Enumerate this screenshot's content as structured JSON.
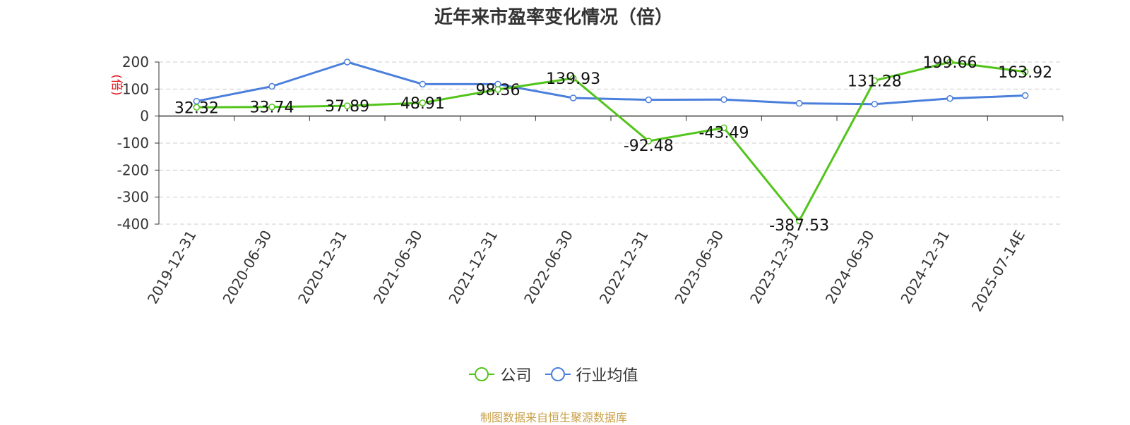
{
  "title": "近年来市盈率变化情况（倍）",
  "unit_label": "(倍)",
  "source": "制图数据来自恒生聚源数据库",
  "chart_data": {
    "type": "line",
    "title": "近年来市盈率变化情况（倍）",
    "ylabel": "(倍)",
    "ylim": [
      -400,
      200
    ],
    "yticks": [
      200,
      100,
      0,
      -100,
      -200,
      -300,
      -400
    ],
    "grid": true,
    "legend_position": "bottom",
    "categories": [
      "2019-12-31",
      "2020-06-30",
      "2020-12-31",
      "2021-06-30",
      "2021-12-31",
      "2022-06-30",
      "2022-12-31",
      "2023-06-30",
      "2023-12-31",
      "2024-06-30",
      "2024-12-31",
      "2025-07-14E"
    ],
    "series": [
      {
        "name": "公司",
        "color": "#52c41a",
        "values": [
          32.32,
          33.74,
          37.89,
          48.91,
          98.36,
          139.93,
          -92.48,
          -43.49,
          -387.53,
          131.28,
          199.66,
          163.92
        ],
        "labels": [
          "32.32",
          "33.74",
          "37.89",
          "48.91",
          "98.36",
          "139.93",
          "-92.48",
          "-43.49",
          "-387.53",
          "131.28",
          "199.66",
          "163.92"
        ]
      },
      {
        "name": "行业均值",
        "color": "#4a7fdc",
        "values": [
          55,
          110,
          200,
          118,
          118,
          67,
          60,
          61,
          47,
          44,
          65,
          76
        ]
      }
    ]
  }
}
